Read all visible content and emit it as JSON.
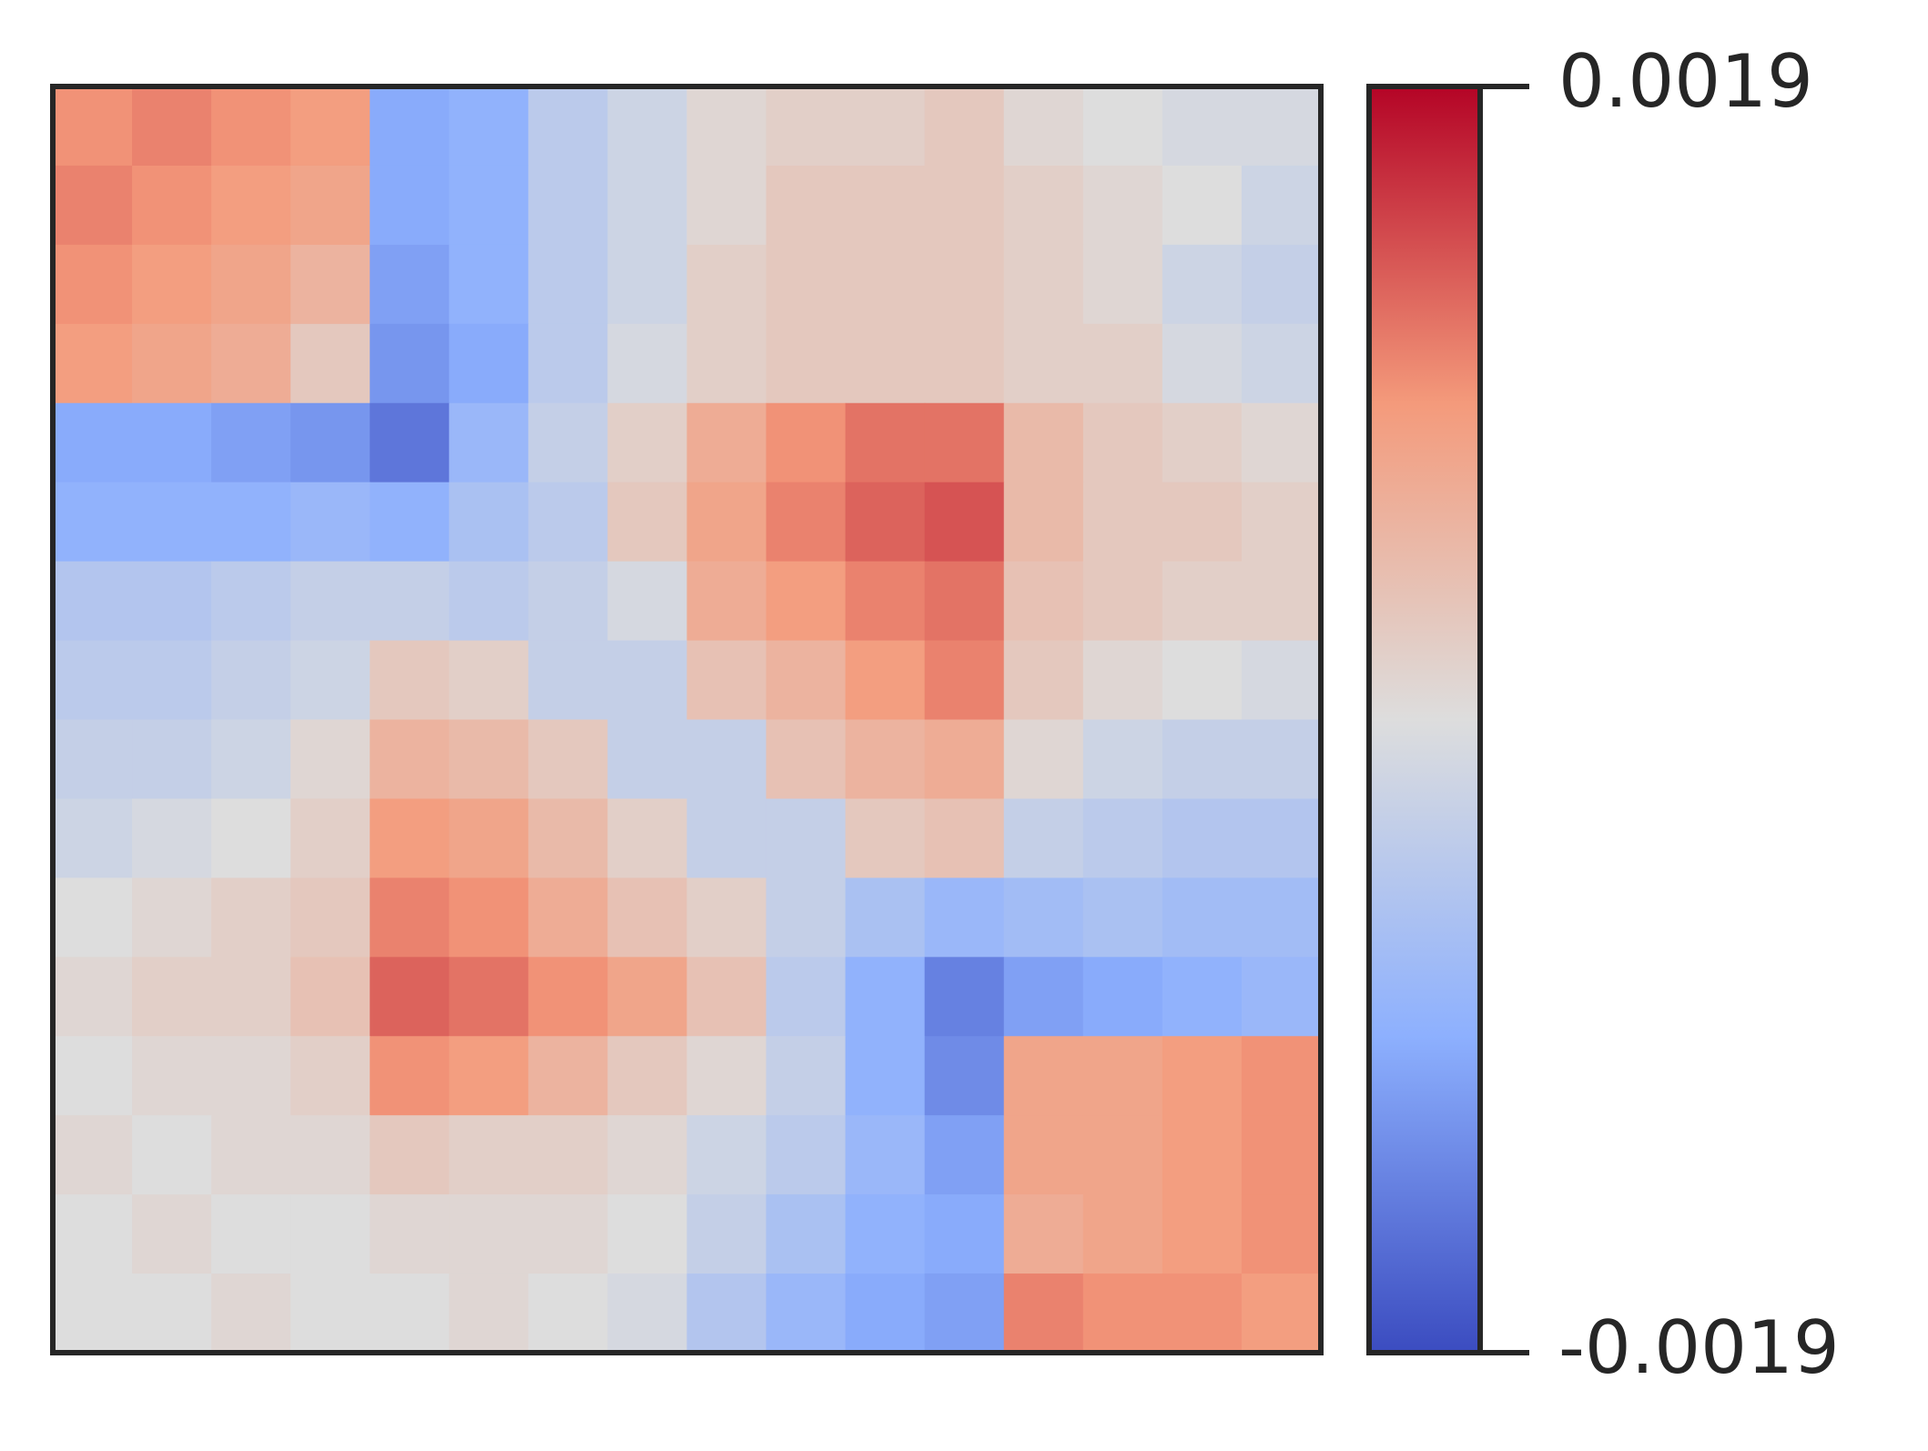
{
  "chart_data": {
    "type": "heatmap",
    "colormap": [
      "#3b4cc0",
      "#8db0fe",
      "#dddddd",
      "#f49a7b",
      "#b40426"
    ],
    "zlim": [
      -0.0019,
      0.0019
    ],
    "zticks": [
      -0.0019,
      0.0019
    ],
    "values": [
      [
        0.001,
        0.0011,
        0.001,
        0.0009,
        -0.001,
        -0.0009,
        -0.0004,
        -0.0002,
        0.0001,
        0.0002,
        0.0002,
        0.0003,
        0.0001,
        0,
        -0.0001,
        -0.0001
      ],
      [
        0.0011,
        0.001,
        0.0009,
        0.0008,
        -0.001,
        -0.0009,
        -0.0004,
        -0.0002,
        0.0001,
        0.0003,
        0.0003,
        0.0003,
        0.0002,
        0.0001,
        0,
        -0.0002
      ],
      [
        0.001,
        0.0009,
        0.0008,
        0.0006,
        -0.0011,
        -0.0009,
        -0.0004,
        -0.0002,
        0.0002,
        0.0003,
        0.0003,
        0.0003,
        0.0002,
        0.0001,
        -0.0002,
        -0.0003
      ],
      [
        0.0009,
        0.0008,
        0.0007,
        0.0003,
        -0.0012,
        -0.001,
        -0.0004,
        -0.0001,
        0.0002,
        0.0003,
        0.0003,
        0.0003,
        0.0002,
        0.0002,
        -0.0001,
        -0.0002
      ],
      [
        -0.001,
        -0.001,
        -0.0011,
        -0.0012,
        -0.0015,
        -0.0008,
        -0.0003,
        0.0002,
        0.0007,
        0.001,
        0.0012,
        0.0012,
        0.0005,
        0.0003,
        0.0002,
        0.0001
      ],
      [
        -0.0009,
        -0.0009,
        -0.0009,
        -0.0008,
        -0.0009,
        -0.0006,
        -0.0004,
        0.0003,
        0.0008,
        0.0011,
        0.0013,
        0.0014,
        0.0005,
        0.0003,
        0.0003,
        0.0002
      ],
      [
        -0.0005,
        -0.0005,
        -0.0004,
        -0.0003,
        -0.0003,
        -0.0004,
        -0.0003,
        -0.0001,
        0.0007,
        0.0009,
        0.0011,
        0.0012,
        0.0004,
        0.0003,
        0.0002,
        0.0002
      ],
      [
        -0.0004,
        -0.0004,
        -0.0003,
        -0.0002,
        0.0003,
        0.0002,
        -0.0003,
        -0.0003,
        0.0004,
        0.0006,
        0.0009,
        0.0011,
        0.0003,
        0.0001,
        0,
        -0.0001
      ],
      [
        -0.0003,
        -0.0003,
        -0.0002,
        0.0001,
        0.0006,
        0.0005,
        0.0003,
        -0.0003,
        -0.0003,
        0.0004,
        0.0006,
        0.0007,
        0.0001,
        -0.0002,
        -0.0003,
        -0.0003
      ],
      [
        -0.0002,
        -0.0001,
        0,
        0.0002,
        0.0009,
        0.0008,
        0.0005,
        0.0002,
        -0.0003,
        -0.0003,
        0.0003,
        0.0004,
        -0.0003,
        -0.0004,
        -0.0005,
        -0.0005
      ],
      [
        0,
        0.0001,
        0.0002,
        0.0003,
        0.0011,
        0.001,
        0.0007,
        0.0004,
        0.0002,
        -0.0003,
        -0.0006,
        -0.0008,
        -0.0007,
        -0.0006,
        -0.0007,
        -0.0007
      ],
      [
        0.0001,
        0.0002,
        0.0002,
        0.0004,
        0.0013,
        0.0012,
        0.001,
        0.0008,
        0.0004,
        -0.0004,
        -0.0009,
        -0.0014,
        -0.0011,
        -0.001,
        -0.0009,
        -0.0008
      ],
      [
        0,
        0.0001,
        0.0001,
        0.0002,
        0.001,
        0.0009,
        0.0006,
        0.0003,
        0.0001,
        -0.0003,
        -0.0009,
        -0.0013,
        0.0008,
        0.0008,
        0.0009,
        0.001
      ],
      [
        0.0001,
        0,
        0.0001,
        0.0001,
        0.0003,
        0.0002,
        0.0002,
        0.0001,
        -0.0002,
        -0.0004,
        -0.0008,
        -0.0011,
        0.0008,
        0.0008,
        0.0009,
        0.001
      ],
      [
        0,
        0.0001,
        0,
        0,
        0.0001,
        0.0001,
        0.0001,
        0,
        -0.0003,
        -0.0006,
        -0.0009,
        -0.001,
        0.0007,
        0.0008,
        0.0009,
        0.001
      ],
      [
        0,
        0,
        0.0001,
        0,
        0,
        0.0001,
        0,
        -0.0001,
        -0.0005,
        -0.0008,
        -0.001,
        -0.0011,
        0.0011,
        0.001,
        0.001,
        0.0009
      ]
    ]
  }
}
